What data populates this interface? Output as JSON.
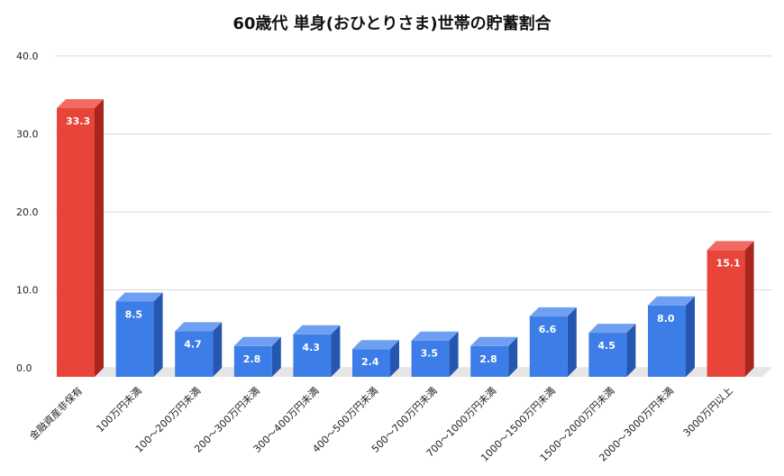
{
  "chart_data": {
    "type": "bar",
    "title": "60歳代 単身(おひとりさま)世帯の貯蓄割合",
    "xlabel": "",
    "ylabel": "",
    "ylim": [
      0,
      40
    ],
    "yticks": [
      "0.0",
      "10.0",
      "20.0",
      "30.0",
      "40.0"
    ],
    "grid": true,
    "legend": "none",
    "categories": [
      "金融資産非保有",
      "100万円未満",
      "100～200万円未満",
      "200～300万円未満",
      "300～400万円未満",
      "400～500万円未満",
      "500～700万円未満",
      "700～1000万円未満",
      "1000～1500万円未満",
      "1500～2000万円未満",
      "2000～3000万円未満",
      "3000万円以上"
    ],
    "values": [
      33.3,
      8.5,
      4.7,
      2.8,
      4.3,
      2.4,
      3.5,
      2.8,
      6.6,
      4.5,
      8.0,
      15.1
    ],
    "value_labels": [
      "33.3",
      "8.5",
      "4.7",
      "2.8",
      "4.3",
      "2.4",
      "3.5",
      "2.8",
      "6.6",
      "4.5",
      "8.0",
      "15.1"
    ],
    "highlight_indices": [
      0,
      11
    ],
    "colors": {
      "highlight_front": "#e8443a",
      "highlight_top": "#f26b62",
      "highlight_side": "#a9261f",
      "normal_front": "#3c7de8",
      "normal_top": "#6f9ff0",
      "normal_side": "#2557b0",
      "grid": "#d9d9d9",
      "floor": "#e6e6e6"
    }
  }
}
